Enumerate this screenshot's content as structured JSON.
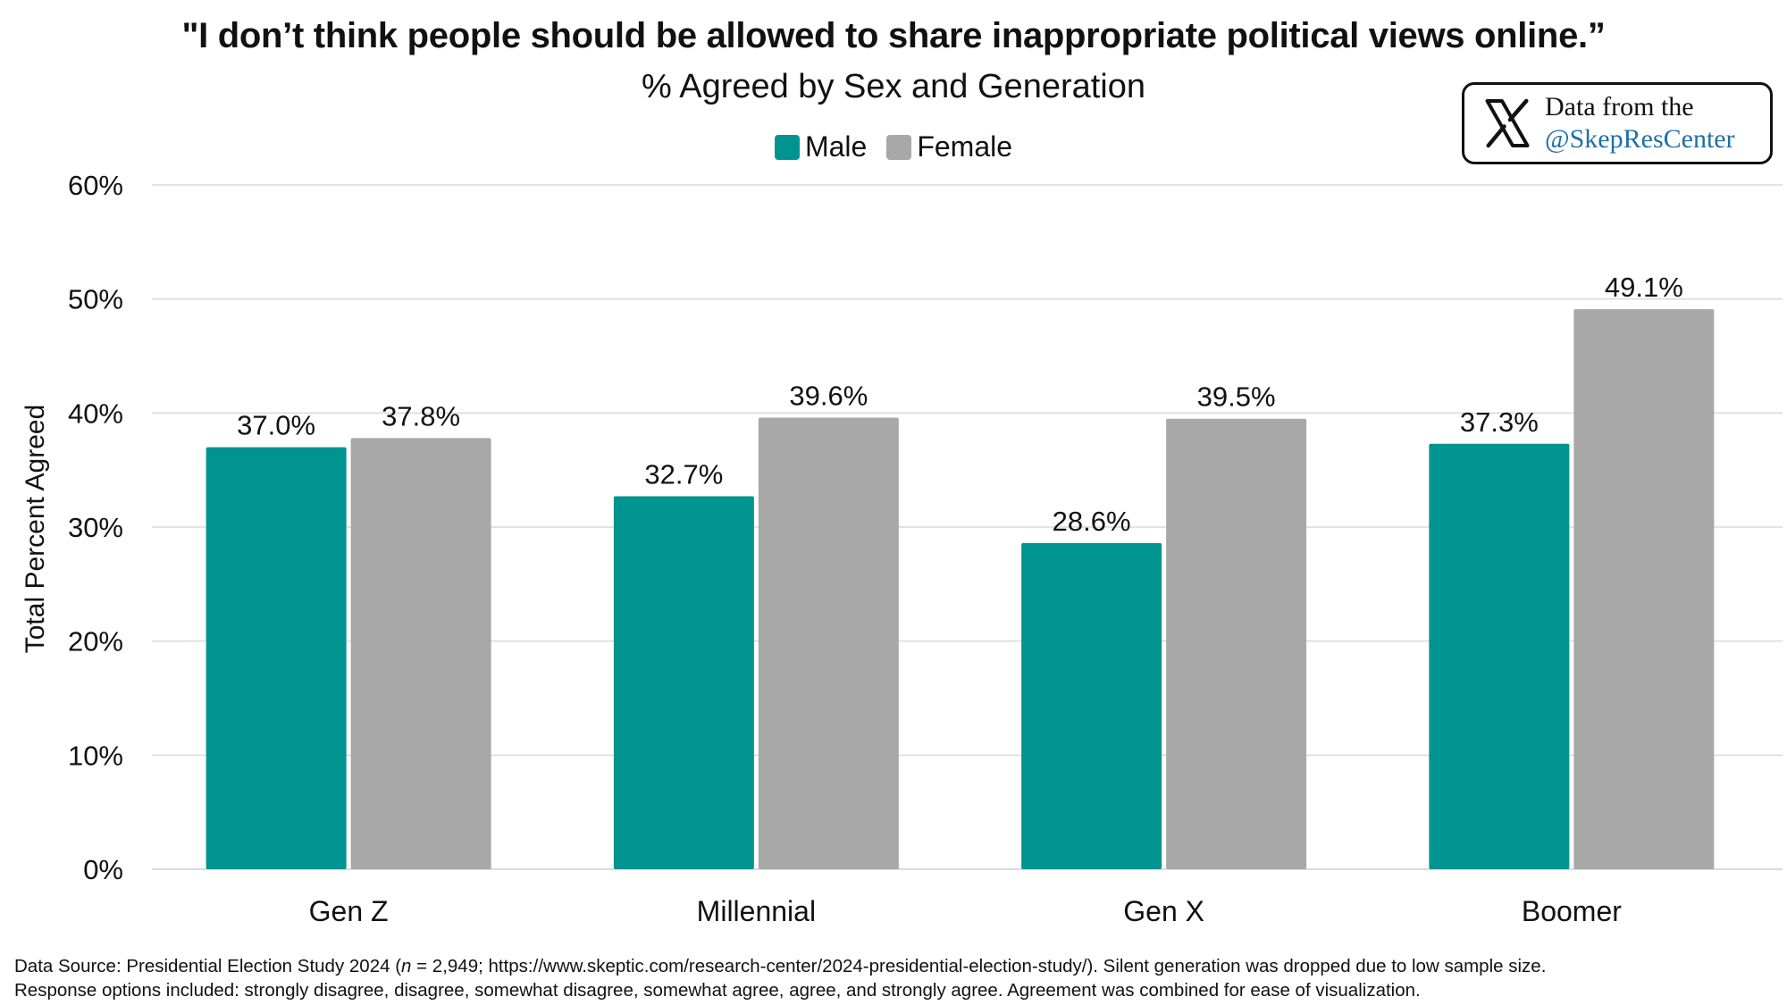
{
  "header": {
    "title": "\"I don’t think people should be allowed to share inappropriate political views online.”",
    "subtitle": "% Agreed by Sex and Generation"
  },
  "badge": {
    "line1": "Data from the",
    "line2": "@SkepResCenter",
    "icon": "x-logo-icon"
  },
  "colors": {
    "male": "#009490",
    "female": "#a8a8a8",
    "grid": "#d9d9d9"
  },
  "chart_data": {
    "type": "bar",
    "title": "\"I don’t think people should be allowed to share inappropriate political views online.”",
    "subtitle": "% Agreed by Sex and Generation",
    "xlabel": "",
    "ylabel": "Total Percent Agreed",
    "ylim": [
      0,
      60
    ],
    "yticks": [
      "0%",
      "10%",
      "20%",
      "30%",
      "40%",
      "50%",
      "60%"
    ],
    "grid": true,
    "legend_position": "top-center",
    "categories": [
      "Gen Z",
      "Millennial",
      "Gen X",
      "Boomer"
    ],
    "series": [
      {
        "name": "Male",
        "values": [
          37.0,
          32.7,
          28.6,
          37.3
        ],
        "labels": [
          "37.0%",
          "32.7%",
          "28.6%",
          "37.3%"
        ]
      },
      {
        "name": "Female",
        "values": [
          37.8,
          39.6,
          39.5,
          49.1
        ],
        "labels": [
          "37.8%",
          "39.6%",
          "39.5%",
          "49.1%"
        ]
      }
    ]
  },
  "footer": {
    "source_prefix": "Data Source: Presidential Election Study 2024 (",
    "source_n": "n",
    "source_rest": " = 2,949; https://www.skeptic.com/research-center/2024-presidential-election-study/). Silent generation was dropped due to low sample size.",
    "line2": "Response options included: strongly disagree, disagree, somewhat disagree, somewhat agree, agree, and strongly agree. Agreement was combined for ease of visualization."
  }
}
